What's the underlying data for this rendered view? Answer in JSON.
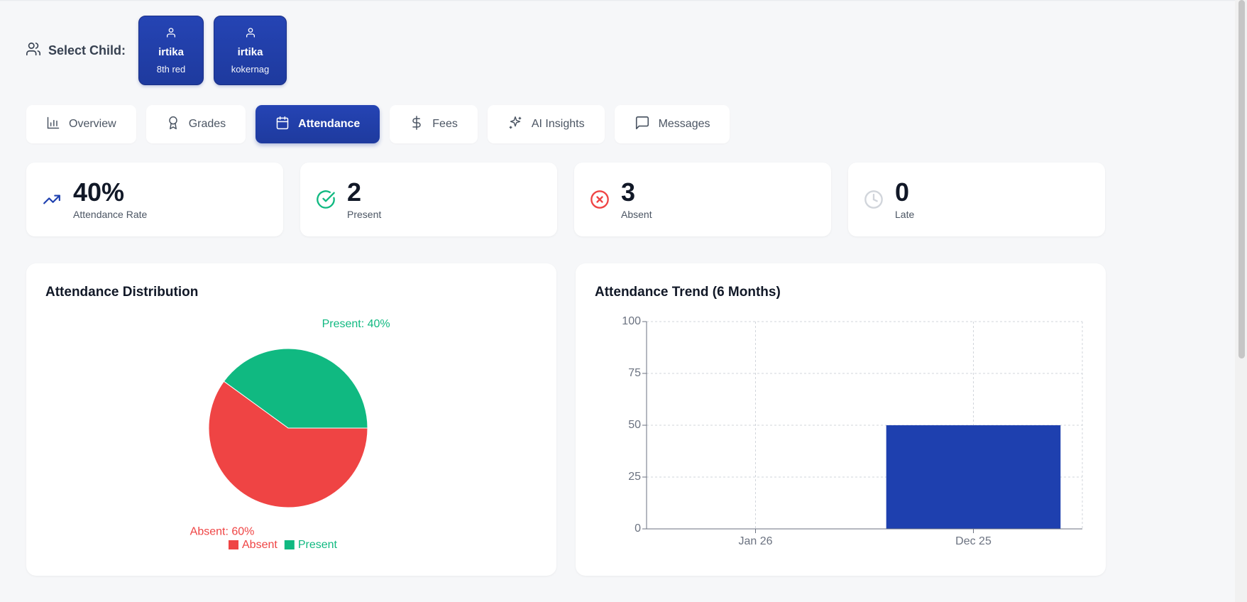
{
  "child_selector": {
    "label": "Select Child:",
    "children": [
      {
        "name": "irtika",
        "class": "8th red"
      },
      {
        "name": "irtika",
        "class": "kokernag"
      }
    ]
  },
  "tabs": [
    {
      "label": "Overview",
      "icon": "bar-chart-icon",
      "active": false
    },
    {
      "label": "Grades",
      "icon": "award-icon",
      "active": false
    },
    {
      "label": "Attendance",
      "icon": "calendar-icon",
      "active": true
    },
    {
      "label": "Fees",
      "icon": "dollar-icon",
      "active": false
    },
    {
      "label": "AI Insights",
      "icon": "sparkles-icon",
      "active": false
    },
    {
      "label": "Messages",
      "icon": "message-icon",
      "active": false
    }
  ],
  "stats": [
    {
      "value": "40%",
      "label": "Attendance Rate",
      "icon": "trending-up-icon",
      "color": "#1e40af"
    },
    {
      "value": "2",
      "label": "Present",
      "icon": "check-circle-icon",
      "color": "#10b981"
    },
    {
      "value": "3",
      "label": "Absent",
      "icon": "x-circle-icon",
      "color": "#ef4444"
    },
    {
      "value": "0",
      "label": "Late",
      "icon": "clock-icon",
      "color": "#d1d5db"
    }
  ],
  "colors": {
    "accent": "#1e40af",
    "present": "#10b981",
    "absent": "#ef4444"
  },
  "chart_data": [
    {
      "type": "pie",
      "title": "Attendance Distribution",
      "slices": [
        {
          "name": "Present",
          "value": 40,
          "label": "Present: 40%",
          "color": "#10b981"
        },
        {
          "name": "Absent",
          "value": 60,
          "label": "Absent: 60%",
          "color": "#ef4444"
        }
      ],
      "legend": [
        "Absent",
        "Present"
      ]
    },
    {
      "type": "bar",
      "title": "Attendance Trend (6 Months)",
      "categories": [
        "Jan 26",
        "Dec 25"
      ],
      "values": [
        0,
        50
      ],
      "ylim": [
        0,
        100
      ],
      "yticks": [
        0,
        25,
        50,
        75,
        100
      ],
      "color": "#1e40af",
      "grid": true
    }
  ]
}
